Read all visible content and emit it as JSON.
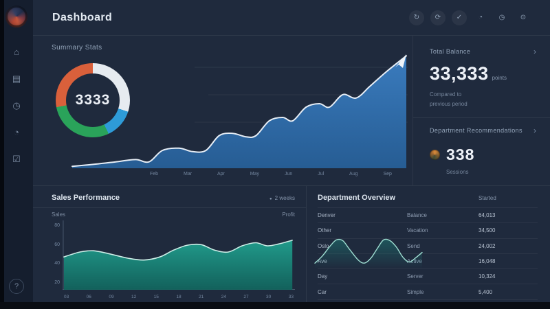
{
  "colors": {
    "bg": "#1f2a3d",
    "sidebar_bg": "#151e2e",
    "accent_blue": "#2f6fb2",
    "teal": "#1c9486",
    "orange": "#d9603b",
    "green": "#2aa35a",
    "sky": "#2e9bd8",
    "text_bright": "#e8edf4",
    "text_muted": "#8494aa"
  },
  "sidebar": {
    "items": [
      {
        "name": "dashboard",
        "glyph": "⌂"
      },
      {
        "name": "analytics",
        "glyph": "▤"
      },
      {
        "name": "activity",
        "glyph": "◷"
      },
      {
        "name": "reports",
        "glyph": "◔"
      },
      {
        "name": "tasks",
        "glyph": "☑"
      }
    ],
    "help_glyph": "?"
  },
  "header": {
    "title": "Dashboard",
    "icons": [
      {
        "name": "refresh",
        "glyph": "↻"
      },
      {
        "name": "sync",
        "glyph": "⟳"
      },
      {
        "name": "check",
        "glyph": "✓"
      },
      {
        "name": "pie",
        "glyph": "◔"
      },
      {
        "name": "clock",
        "glyph": "◷"
      },
      {
        "name": "target",
        "glyph": "⊙"
      }
    ]
  },
  "summary": {
    "label": "Summary Stats"
  },
  "stats_panel": {
    "section1": {
      "label": "Total Balance",
      "chevron": "›",
      "value": "33,333",
      "suffix": "points",
      "sub_line1": "Compared to",
      "sub_line2": "previous period"
    },
    "section2": {
      "label": "Department Recommendations",
      "chevron": "›",
      "value": "338",
      "sub": "Sessions"
    }
  },
  "sales_panel": {
    "title": "Sales Performance",
    "legend_dot": "●",
    "legend_label": "2 weeks",
    "col_left": "Sales",
    "col_right": "Profit"
  },
  "table_panel": {
    "title": "Department Overview",
    "header_right": "Started",
    "rows": [
      {
        "label": "Denver",
        "status": "Balance",
        "value": "64,013"
      },
      {
        "label": "Other",
        "status": "Vacation",
        "value": "34,500"
      },
      {
        "label": "Oslo",
        "status": "Send",
        "value": "24,002"
      },
      {
        "label": "Ave",
        "status": "Active",
        "value": "16,048"
      },
      {
        "label": "Day",
        "status": "Server",
        "value": "10,324"
      },
      {
        "label": "Car",
        "status": "Simple",
        "value": "5,400"
      }
    ]
  },
  "chart_data": [
    {
      "id": "revenue",
      "type": "area",
      "title": "Summary Stats",
      "x_labels": [
        "Feb",
        "Mar",
        "Apr",
        "May",
        "Jun",
        "Jul",
        "Aug",
        "Sep"
      ],
      "ylim": [
        0,
        100
      ],
      "grid": true,
      "annotation": "white up-right arrow at peak",
      "points_norm": [
        [
          0,
          1
        ],
        [
          7,
          3
        ],
        [
          13,
          5
        ],
        [
          19,
          7
        ],
        [
          23,
          5
        ],
        [
          27,
          15
        ],
        [
          32,
          17
        ],
        [
          36,
          14
        ],
        [
          40,
          15
        ],
        [
          44,
          28
        ],
        [
          48,
          30
        ],
        [
          52,
          27
        ],
        [
          55,
          28
        ],
        [
          59,
          41
        ],
        [
          63,
          44
        ],
        [
          66,
          41
        ],
        [
          70,
          53
        ],
        [
          74,
          56
        ],
        [
          77,
          53
        ],
        [
          81,
          64
        ],
        [
          85,
          61
        ],
        [
          89,
          71
        ],
        [
          94,
          84
        ],
        [
          100,
          98
        ]
      ],
      "color_top": "#3b7ec2",
      "color_bottom": "#27619b",
      "line_color": "#e7eef6"
    },
    {
      "id": "sales",
      "type": "area",
      "y_ticks": [
        "80",
        "60",
        "40",
        "20"
      ],
      "x_labels": [
        "03",
        "06",
        "09",
        "12",
        "15",
        "18",
        "21",
        "24",
        "27",
        "30",
        "33"
      ],
      "ylim": [
        0,
        100
      ],
      "points_norm": [
        [
          0,
          52
        ],
        [
          7,
          60
        ],
        [
          13,
          62
        ],
        [
          20,
          57
        ],
        [
          28,
          50
        ],
        [
          35,
          47
        ],
        [
          42,
          52
        ],
        [
          48,
          63
        ],
        [
          54,
          71
        ],
        [
          60,
          72
        ],
        [
          66,
          63
        ],
        [
          72,
          60
        ],
        [
          78,
          70
        ],
        [
          84,
          75
        ],
        [
          89,
          70
        ],
        [
          94,
          73
        ],
        [
          100,
          79
        ]
      ],
      "color_top": "#21a18f",
      "color_bottom": "#11675f",
      "line_color": "#cdeee7"
    },
    {
      "id": "spark",
      "type": "line",
      "points_norm": [
        [
          0,
          15
        ],
        [
          7,
          35
        ],
        [
          14,
          62
        ],
        [
          20,
          80
        ],
        [
          26,
          78
        ],
        [
          32,
          55
        ],
        [
          40,
          25
        ],
        [
          46,
          15
        ],
        [
          52,
          28
        ],
        [
          58,
          55
        ],
        [
          64,
          80
        ],
        [
          70,
          78
        ],
        [
          76,
          60
        ],
        [
          82,
          32
        ],
        [
          88,
          18
        ],
        [
          94,
          30
        ],
        [
          100,
          45
        ]
      ],
      "line_color": "#9fded2",
      "fill_color": "#1d9688"
    },
    {
      "id": "gauge",
      "type": "donut",
      "value": "3333",
      "segments": [
        {
          "label": "segment-light",
          "color": "#e6ebf0",
          "pct": 30
        },
        {
          "label": "segment-blue",
          "color": "#2e9bd8",
          "pct": 13
        },
        {
          "label": "segment-green",
          "color": "#2aa35a",
          "pct": 29
        },
        {
          "label": "segment-orange",
          "color": "#d9603b",
          "pct": 28
        }
      ]
    }
  ]
}
